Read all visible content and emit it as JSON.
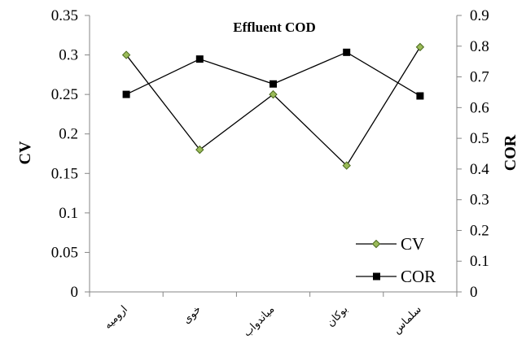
{
  "chart_data": {
    "type": "line",
    "title": "Effluent COD",
    "categories": [
      "ارومیه",
      "خوی",
      "میاندواب",
      "بوکان",
      "سلماس"
    ],
    "y_left": {
      "label": "CV",
      "min": 0,
      "max": 0.35,
      "step": 0.05,
      "ticks": [
        "0",
        "0.05",
        "0.1",
        "0.15",
        "0.2",
        "0.25",
        "0.3",
        "0.35"
      ]
    },
    "y_right": {
      "label": "COR",
      "min": 0,
      "max": 0.9,
      "step": 0.1,
      "ticks": [
        "0",
        "0.1",
        "0.2",
        "0.3",
        "0.4",
        "0.5",
        "0.6",
        "0.7",
        "0.8",
        "0.9"
      ]
    },
    "series": [
      {
        "name": "CV",
        "axis": "left",
        "marker": "diamond",
        "color": "#6a8f2e",
        "values": [
          0.3,
          0.18,
          0.25,
          0.16,
          0.31
        ]
      },
      {
        "name": "COR",
        "axis": "right",
        "marker": "square",
        "color": "#000000",
        "values": [
          0.643,
          0.758,
          0.677,
          0.78,
          0.638
        ]
      }
    ],
    "legend": {
      "position": "bottom-right",
      "labels": [
        "CV",
        "COR"
      ]
    },
    "grid": false
  }
}
